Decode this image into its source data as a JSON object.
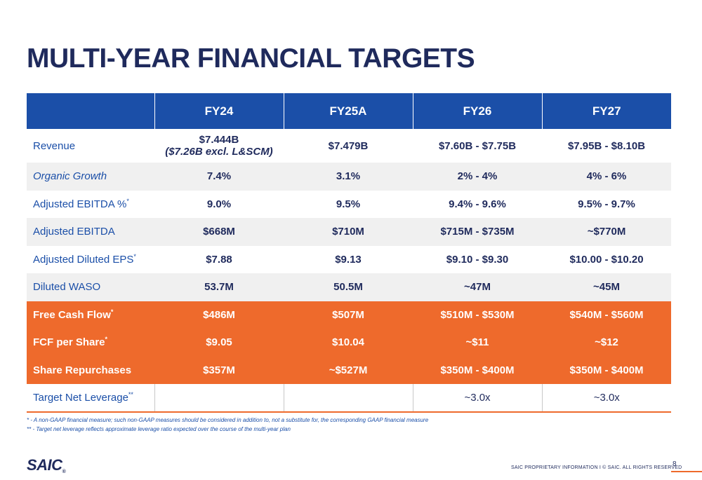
{
  "title": "MULTI-YEAR FINANCIAL TARGETS",
  "columns": [
    "FY24",
    "FY25A",
    "FY26",
    "FY27"
  ],
  "rows": {
    "revenue": {
      "label": "Revenue",
      "fy24_line1": "$7.444B",
      "fy24_line2": "($7.26B excl. L&SCM)",
      "fy25": "$7.479B",
      "fy26": "$7.60B - $7.75B",
      "fy27": "$7.95B - $8.10B"
    },
    "organic_growth": {
      "label": "Organic Growth",
      "fy24": "7.4%",
      "fy25": "3.1%",
      "fy26": "2% - 4%",
      "fy27": "4% - 6%"
    },
    "adj_ebitda_pct": {
      "label": "Adjusted EBITDA %",
      "mark": "*",
      "fy24": "9.0%",
      "fy25": "9.5%",
      "fy26": "9.4% - 9.6%",
      "fy27": "9.5% - 9.7%"
    },
    "adj_ebitda": {
      "label": "Adjusted EBITDA",
      "fy24": "$668M",
      "fy25": "$710M",
      "fy26": "$715M - $735M",
      "fy27": "~$770M"
    },
    "adj_eps": {
      "label": "Adjusted Diluted EPS",
      "mark": "*",
      "fy24": "$7.88",
      "fy25": "$9.13",
      "fy26": "$9.10 - $9.30",
      "fy27": "$10.00 - $10.20"
    },
    "waso": {
      "label": "Diluted WASO",
      "fy24": "53.7M",
      "fy25": "50.5M",
      "fy26": "~47M",
      "fy27": "~45M"
    },
    "fcf": {
      "label": "Free Cash Flow",
      "mark": "*",
      "fy24": "$486M",
      "fy25": "$507M",
      "fy26": "$510M - $530M",
      "fy27": "$540M - $560M"
    },
    "fcf_share": {
      "label": "FCF per Share",
      "mark": "*",
      "fy24": "$9.05",
      "fy25": "$10.04",
      "fy26": "~$11",
      "fy27": "~$12"
    },
    "repurchases": {
      "label": "Share Repurchases",
      "fy24": "$357M",
      "fy25": "~$527M",
      "fy26": "$350M - $400M",
      "fy27": "$350M - $400M"
    },
    "leverage": {
      "label": "Target Net Leverage",
      "mark": "**",
      "fy24": "",
      "fy25": "",
      "fy26": "~3.0x",
      "fy27": "~3.0x"
    }
  },
  "footnotes": [
    "* - A non-GAAP financial measure; such non-GAAP measures should be considered in addition to, not a substitute for, the corresponding GAAP financial measure",
    "** - Target net leverage reflects approximate leverage ratio expected over the course of the multi-year plan"
  ],
  "logo": {
    "text": "SAIC",
    "mark": "®"
  },
  "footer": "SAIC PROPRIETARY INFORMATION  I  © SAIC. ALL RIGHTS RESERVED",
  "page_number": "8",
  "colors": {
    "navy": "#1f2a5c",
    "blue": "#1b4fa8",
    "orange": "#ee6a2c",
    "gray_row": "#f0f0f0"
  }
}
